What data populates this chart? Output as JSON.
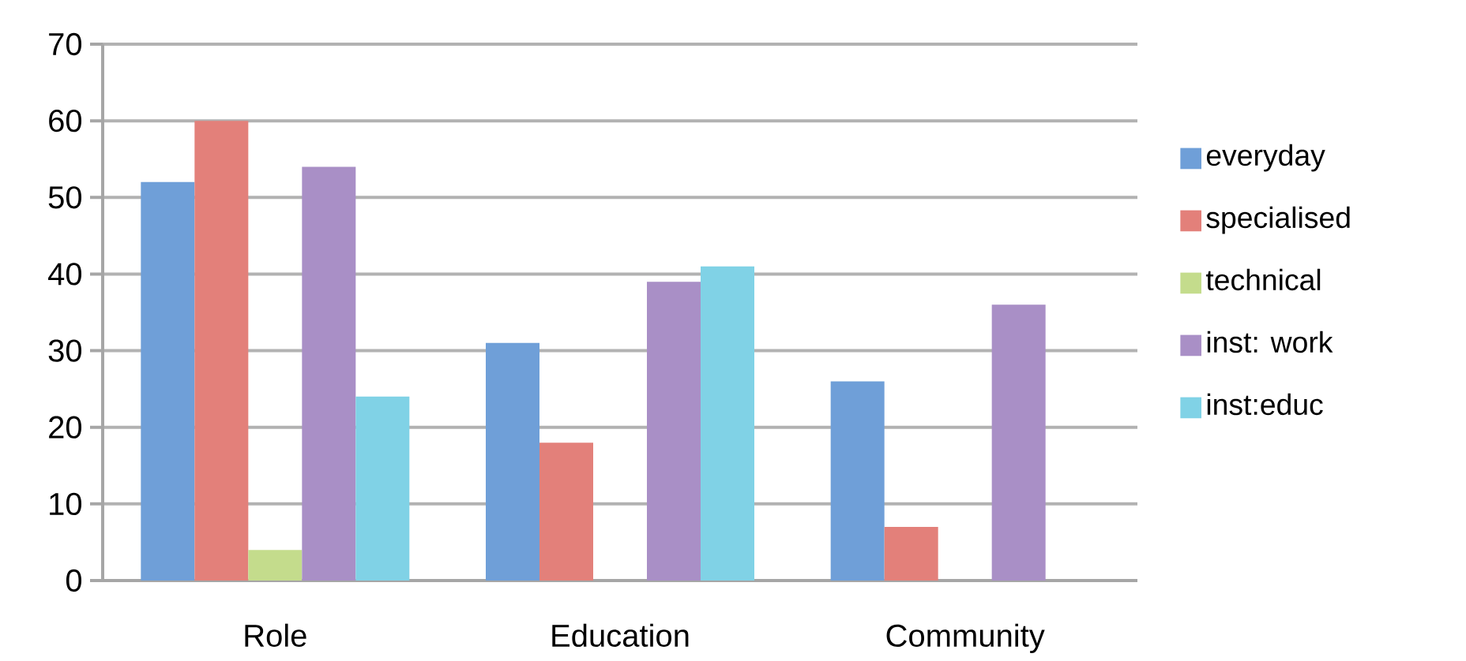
{
  "chart_data": {
    "type": "bar",
    "categories": [
      "Role",
      "Education",
      "Community"
    ],
    "series": [
      {
        "name": "everyday",
        "color": "#6f9fd8",
        "values": [
          52,
          31,
          26
        ]
      },
      {
        "name": "specialised",
        "color": "#e3807a",
        "values": [
          60,
          18,
          7
        ]
      },
      {
        "name": "technical",
        "color": "#c4dc8c",
        "values": [
          4,
          0,
          0
        ]
      },
      {
        "name": "inst: work",
        "color": "#a98fc6",
        "values": [
          54,
          39,
          36
        ]
      },
      {
        "name": "inst:educ",
        "color": "#80d2e6",
        "values": [
          24,
          41,
          0
        ]
      }
    ],
    "ylim": [
      0,
      70
    ],
    "yticks": [
      0,
      10,
      20,
      30,
      40,
      50,
      60,
      70
    ],
    "grid": "y",
    "legend": "right"
  }
}
